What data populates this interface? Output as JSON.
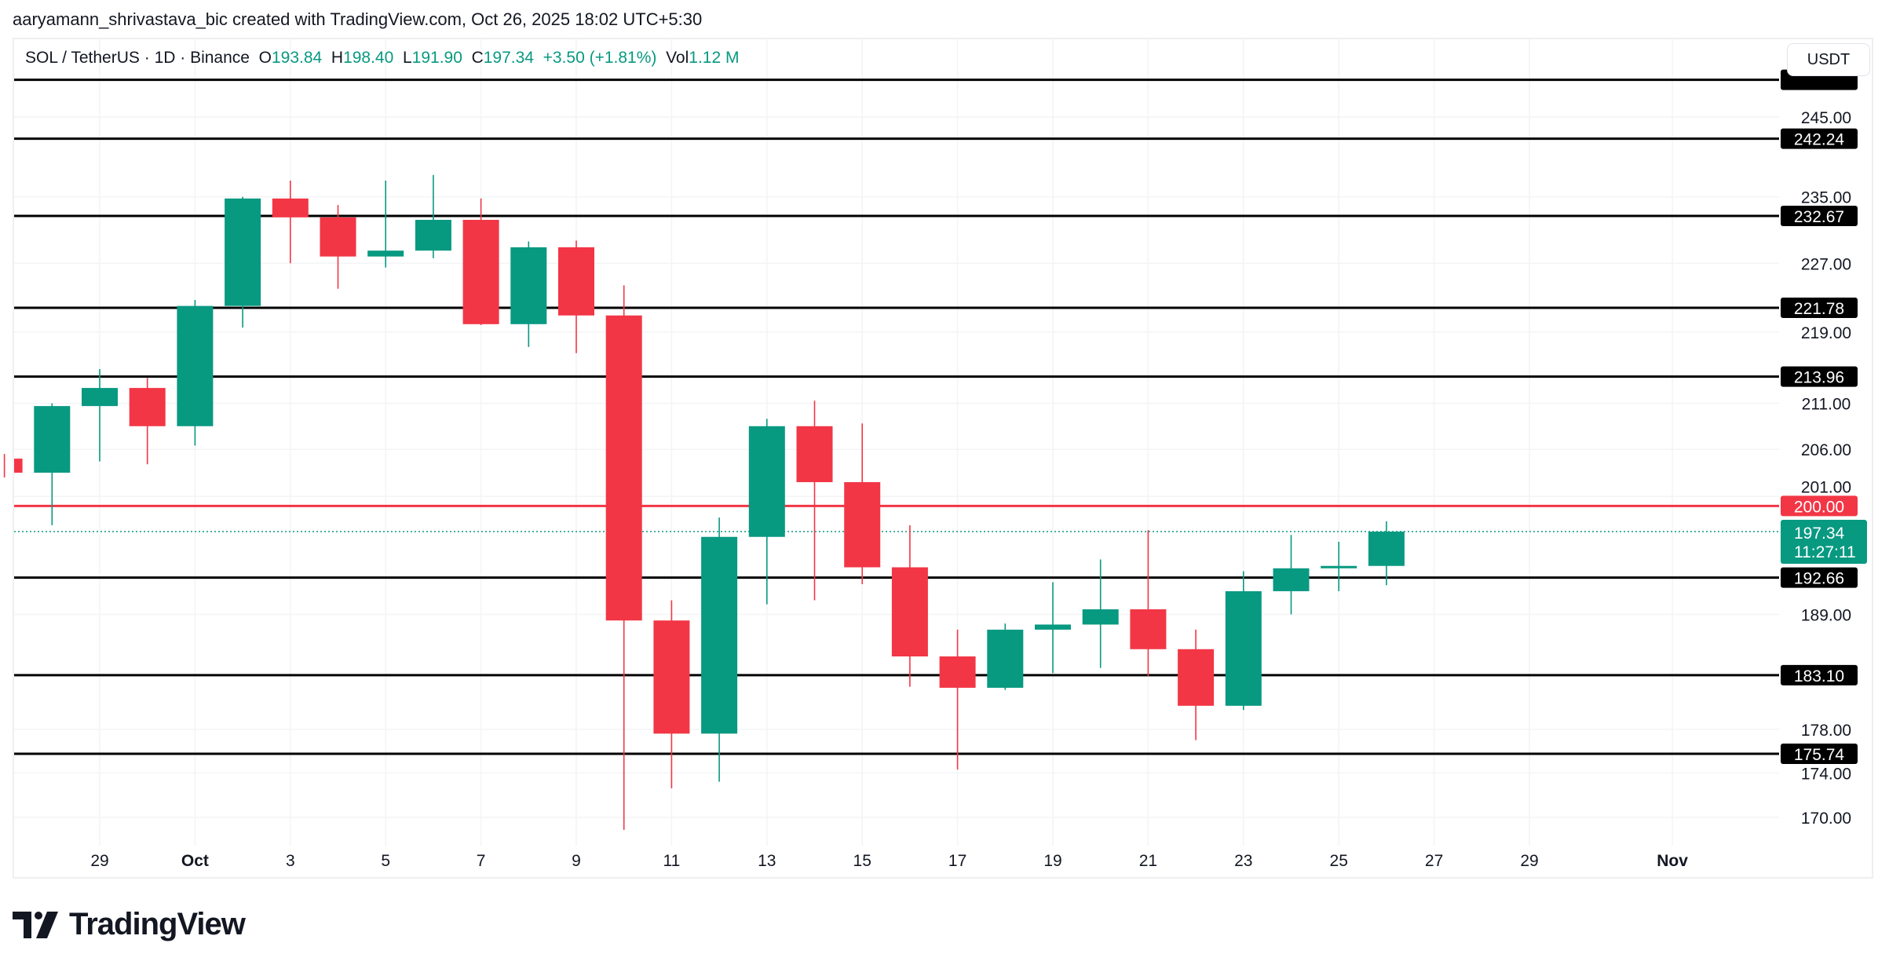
{
  "credit": "aaryamann_shrivastava_bic created with TradingView.com, Oct 26, 2025 18:02 UTC+5:30",
  "legend": {
    "symbol": "SOL / TetherUS · 1D · Binance",
    "o_label": "O",
    "o": "193.84",
    "h_label": "H",
    "h": "198.40",
    "l_label": "L",
    "l": "191.90",
    "c_label": "C",
    "c": "197.34",
    "change": "+3.50 (+1.81%)",
    "vol_label": "Vol",
    "vol": "1.12 M"
  },
  "currency_button": "USDT",
  "logo_text": "TradingView",
  "chart_data": {
    "type": "candlestick",
    "y_scale": "log",
    "ylim": [
      168,
      252
    ],
    "grid": true,
    "colors": {
      "up": "#089981",
      "down": "#f23645",
      "level": "#000000",
      "resistance": "#f23645"
    },
    "y_ticks": [
      "245.00",
      "235.00",
      "227.00",
      "219.00",
      "211.00",
      "206.00",
      "201.00",
      "189.00",
      "178.00",
      "174.00",
      "170.00"
    ],
    "x_ticks": [
      {
        "date": "2025-09-29",
        "label": "29"
      },
      {
        "date": "2025-10-01",
        "label": "Oct"
      },
      {
        "date": "2025-10-03",
        "label": "3"
      },
      {
        "date": "2025-10-05",
        "label": "5"
      },
      {
        "date": "2025-10-07",
        "label": "7"
      },
      {
        "date": "2025-10-09",
        "label": "9"
      },
      {
        "date": "2025-10-11",
        "label": "11"
      },
      {
        "date": "2025-10-13",
        "label": "13"
      },
      {
        "date": "2025-10-15",
        "label": "15"
      },
      {
        "date": "2025-10-17",
        "label": "17"
      },
      {
        "date": "2025-10-19",
        "label": "19"
      },
      {
        "date": "2025-10-21",
        "label": "21"
      },
      {
        "date": "2025-10-23",
        "label": "23"
      },
      {
        "date": "2025-10-25",
        "label": "25"
      },
      {
        "date": "2025-10-27",
        "label": "27"
      },
      {
        "date": "2025-10-29",
        "label": "29"
      },
      {
        "date": "2025-11-01",
        "label": "Nov"
      }
    ],
    "candles": [
      {
        "date": "2025-09-27",
        "o": 205.0,
        "h": 205.5,
        "l": 203.0,
        "c": 203.5
      },
      {
        "date": "2025-09-28",
        "o": 203.5,
        "h": 211.0,
        "l": 198.0,
        "c": 210.7
      },
      {
        "date": "2025-09-29",
        "o": 210.7,
        "h": 214.8,
        "l": 204.7,
        "c": 212.7
      },
      {
        "date": "2025-09-30",
        "o": 212.7,
        "h": 213.8,
        "l": 204.4,
        "c": 208.5
      },
      {
        "date": "2025-10-01",
        "o": 208.5,
        "h": 222.7,
        "l": 206.4,
        "c": 222.0
      },
      {
        "date": "2025-10-02",
        "o": 222.0,
        "h": 235.0,
        "l": 219.5,
        "c": 234.8
      },
      {
        "date": "2025-10-03",
        "o": 234.8,
        "h": 237.0,
        "l": 227.0,
        "c": 232.5
      },
      {
        "date": "2025-10-04",
        "o": 232.5,
        "h": 234.0,
        "l": 224.0,
        "c": 227.8
      },
      {
        "date": "2025-10-05",
        "o": 227.8,
        "h": 237.0,
        "l": 226.5,
        "c": 228.5
      },
      {
        "date": "2025-10-06",
        "o": 228.5,
        "h": 237.7,
        "l": 227.6,
        "c": 232.2
      },
      {
        "date": "2025-10-07",
        "o": 232.2,
        "h": 234.8,
        "l": 219.8,
        "c": 219.9
      },
      {
        "date": "2025-10-08",
        "o": 219.9,
        "h": 229.6,
        "l": 217.3,
        "c": 228.9
      },
      {
        "date": "2025-10-09",
        "o": 228.9,
        "h": 229.7,
        "l": 216.6,
        "c": 220.9
      },
      {
        "date": "2025-10-10",
        "o": 220.9,
        "h": 224.4,
        "l": 168.9,
        "c": 188.4
      },
      {
        "date": "2025-10-11",
        "o": 188.4,
        "h": 190.4,
        "l": 172.6,
        "c": 177.6
      },
      {
        "date": "2025-10-12",
        "o": 177.6,
        "h": 198.8,
        "l": 173.2,
        "c": 196.8
      },
      {
        "date": "2025-10-13",
        "o": 196.8,
        "h": 209.3,
        "l": 190.0,
        "c": 208.5
      },
      {
        "date": "2025-10-14",
        "o": 208.5,
        "h": 211.3,
        "l": 190.4,
        "c": 202.5
      },
      {
        "date": "2025-10-15",
        "o": 202.5,
        "h": 208.8,
        "l": 192.0,
        "c": 193.7
      },
      {
        "date": "2025-10-16",
        "o": 193.7,
        "h": 198.0,
        "l": 182.0,
        "c": 184.9
      },
      {
        "date": "2025-10-17",
        "o": 184.9,
        "h": 187.5,
        "l": 174.3,
        "c": 181.9
      },
      {
        "date": "2025-10-18",
        "o": 181.9,
        "h": 188.1,
        "l": 181.7,
        "c": 187.5
      },
      {
        "date": "2025-10-19",
        "o": 187.5,
        "h": 192.2,
        "l": 183.3,
        "c": 188.0
      },
      {
        "date": "2025-10-20",
        "o": 188.0,
        "h": 194.5,
        "l": 183.8,
        "c": 189.5
      },
      {
        "date": "2025-10-21",
        "o": 189.5,
        "h": 197.5,
        "l": 183.0,
        "c": 185.6
      },
      {
        "date": "2025-10-22",
        "o": 185.6,
        "h": 187.5,
        "l": 177.0,
        "c": 180.2
      },
      {
        "date": "2025-10-23",
        "o": 180.2,
        "h": 193.3,
        "l": 179.8,
        "c": 191.3
      },
      {
        "date": "2025-10-24",
        "o": 191.3,
        "h": 197.0,
        "l": 189.0,
        "c": 193.6
      },
      {
        "date": "2025-10-25",
        "o": 193.6,
        "h": 196.3,
        "l": 191.3,
        "c": 193.84
      },
      {
        "date": "2025-10-26",
        "o": 193.84,
        "h": 198.4,
        "l": 191.9,
        "c": 197.34
      }
    ],
    "levels": [
      {
        "value": 249.8,
        "label": "",
        "color": "#000000"
      },
      {
        "value": 242.24,
        "label": "242.24",
        "color": "#000000"
      },
      {
        "value": 232.67,
        "label": "232.67",
        "color": "#000000"
      },
      {
        "value": 221.78,
        "label": "221.78",
        "color": "#000000"
      },
      {
        "value": 213.96,
        "label": "213.96",
        "color": "#000000"
      },
      {
        "value": 200.0,
        "label": "200.00",
        "color": "#f23645"
      },
      {
        "value": 192.66,
        "label": "192.66",
        "color": "#000000"
      },
      {
        "value": 183.1,
        "label": "183.10",
        "color": "#000000"
      },
      {
        "value": 175.74,
        "label": "175.74",
        "color": "#000000"
      }
    ],
    "last_price": {
      "value": 197.34,
      "label": "197.34",
      "countdown": "11:27:11",
      "color": "#089981"
    }
  }
}
